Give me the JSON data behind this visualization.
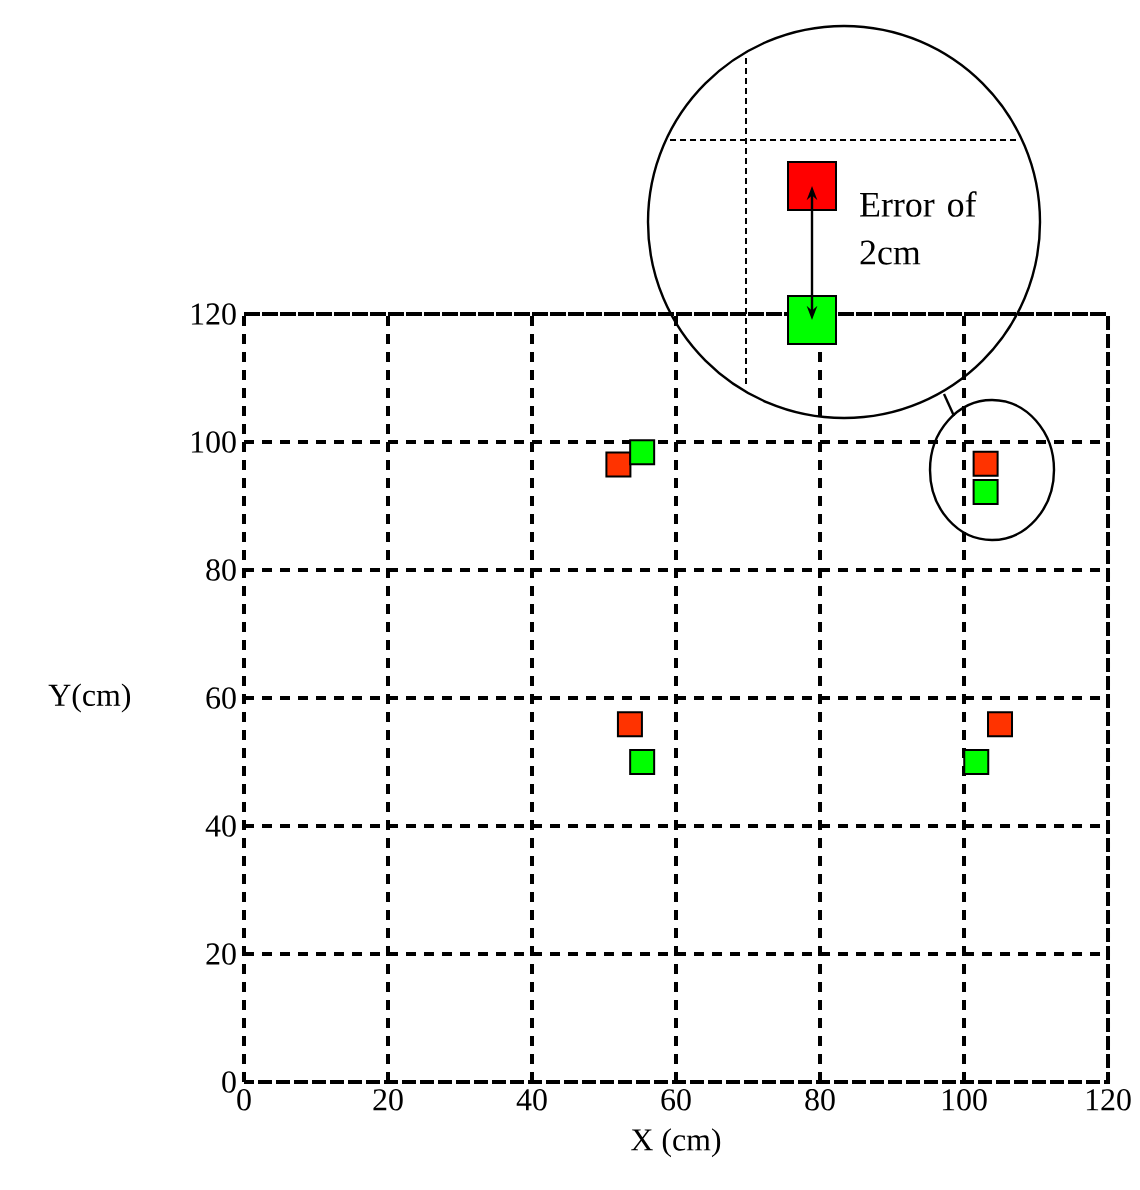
{
  "chart_data": {
    "type": "scatter",
    "xlabel": "X (cm)",
    "ylabel": "Y(cm)",
    "xlim": [
      0,
      120
    ],
    "ylim": [
      0,
      120
    ],
    "xticks": [
      0,
      20,
      40,
      60,
      80,
      100,
      120
    ],
    "yticks": [
      0,
      20,
      40,
      60,
      80,
      100,
      120
    ],
    "grid": true,
    "marker": "square",
    "series": [
      {
        "color": "#ff3300",
        "x": [
          52,
          53.6,
          103,
          105
        ],
        "values": [
          96.5,
          55.9,
          96.6,
          55.9
        ]
      },
      {
        "color": "#00ff00",
        "x": [
          55.3,
          55.3,
          103,
          101.7
        ],
        "values": [
          98.4,
          50,
          92.2,
          50
        ]
      }
    ],
    "annotations": [
      "Error of 2cm"
    ]
  }
}
